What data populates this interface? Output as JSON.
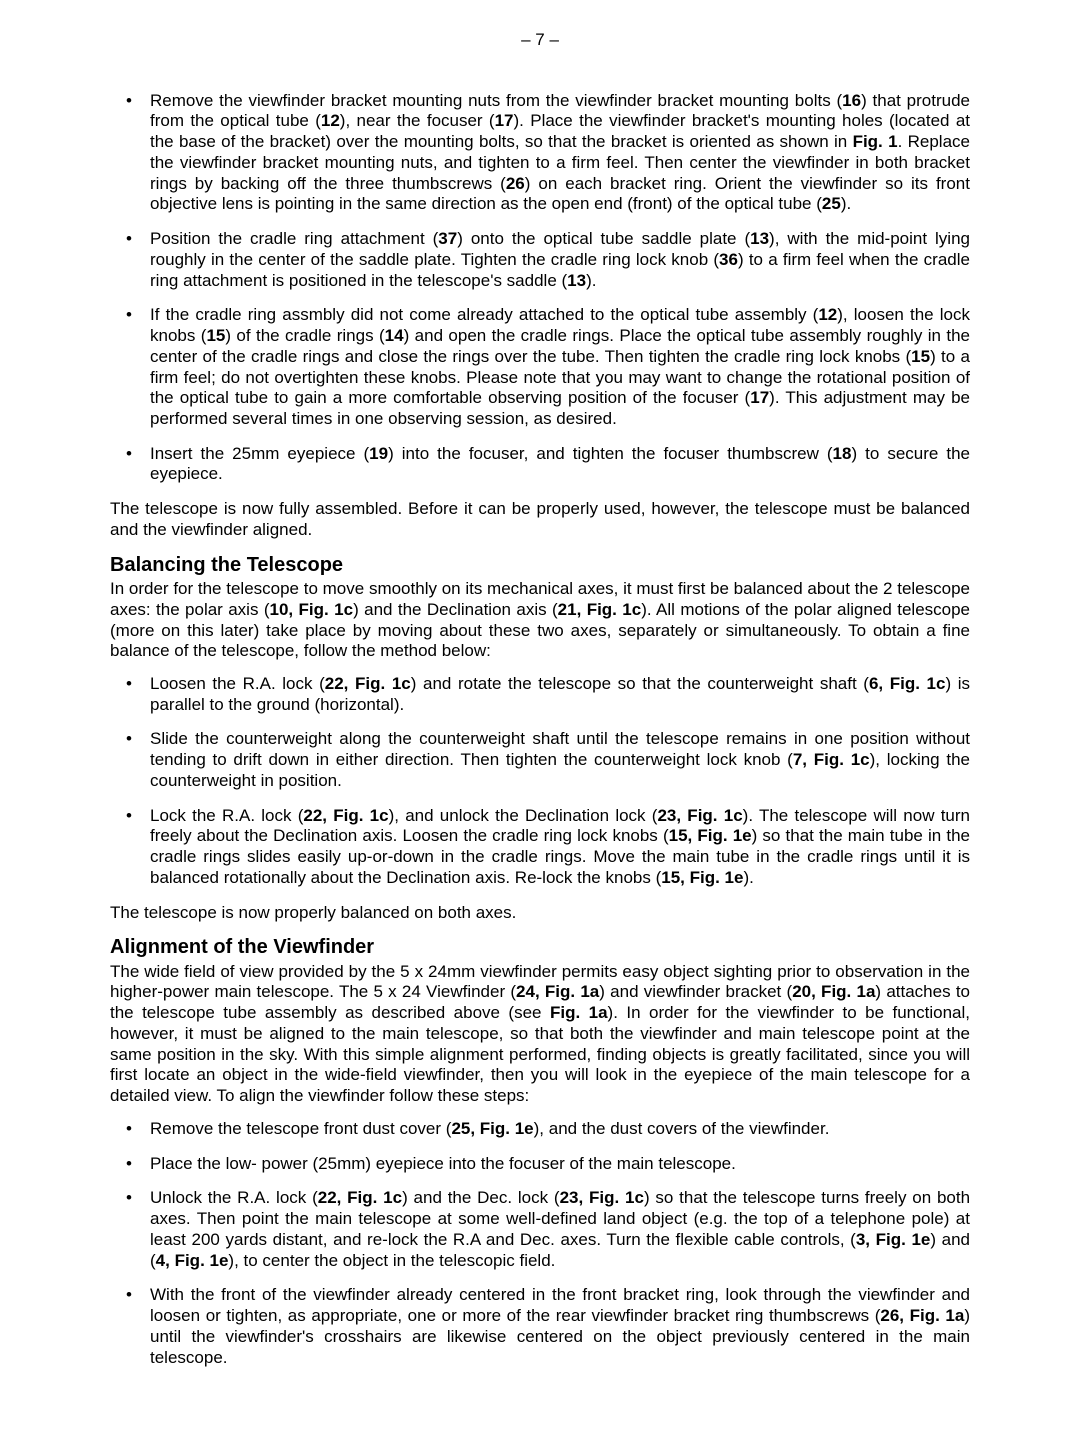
{
  "page_number": "– 7 –",
  "list1": [
    "Remove the viewfinder bracket mounting nuts from the viewfinder bracket mounting bolts (<b>16</b>) that protrude from the optical tube (<b>12</b>), near the focuser (<b>17</b>). Place the viewfinder bracket's mounting holes (located at the base of the bracket) over the mounting bolts, so that the bracket is oriented as shown in <b>Fig. 1</b>. Replace the viewfinder bracket mounting nuts, and tighten to a firm feel. Then center the viewfinder in both bracket rings by backing off the three thumbscrews (<b>26</b>) on each bracket ring. Orient the viewfinder so its front objective lens is pointing in the same direction as the open end (front) of the optical tube (<b>25</b>).",
    "Position the cradle ring attachment (<b>37</b>) onto the optical tube saddle plate (<b>13</b>), with the mid-point lying roughly in the center of the saddle plate. Tighten the cradle ring lock knob (<b>36</b>) to a firm feel when the cradle ring attachment is positioned in the telescope's saddle (<b>13</b>).",
    "If the cradle ring assmbly did not come already attached to the optical tube assembly (<b>12</b>), loosen the lock knobs (<b>15</b>) of the cradle rings (<b>14</b>) and open the cradle rings. Place the optical tube assembly roughly in the center of the cradle rings and close the rings over the tube. Then tighten the cradle ring lock knobs (<b>15</b>) to a firm feel; do not overtighten these knobs. Please note that you may want to change the rotational position of the optical tube to gain a more comfortable observing position of the focuser (<b>17</b>). This adjustment may be performed several times in one observing session, as desired.",
    "Insert the 25mm eyepiece (<b>19</b>) into the focuser, and tighten the focuser thumbscrew (<b>18</b>) to secure the eyepiece."
  ],
  "para1": "The telescope is now fully assembled. Before it can be properly used, however, the telescope must be balanced and the viewfinder aligned.",
  "heading1": "Balancing the Telescope",
  "para2": "In order for the telescope to move smoothly on its mechanical axes, it must first be balanced about the 2 telescope axes: the polar axis (<b>10, Fig. 1c</b>) and the Declination axis (<b>21, Fig. 1c</b>). All motions of the polar aligned telescope (more on this later) take place by moving about these two axes, separately or simultaneously. To obtain a fine balance of the telescope, follow the method below:",
  "list2": [
    "Loosen the R.A. lock (<b>22, Fig. 1c</b>) and rotate the telescope so that the counterweight shaft (<b>6, Fig. 1c</b>) is parallel to the ground (horizontal).",
    "Slide the counterweight along the counterweight shaft until the telescope remains in one position without tending to drift down in either direction. Then tighten the counterweight lock knob (<b>7, Fig. 1c</b>), locking the counterweight in position.",
    "Lock the R.A. lock (<b>22, Fig. 1c</b>), and unlock the Declination lock (<b>23, Fig. 1c</b>). The telescope will now turn freely about the Declination axis. Loosen the cradle ring lock knobs (<b>15, Fig. 1e</b>) so that the main tube in the cradle rings slides easily up-or-down in the cradle rings. Move the main tube in the cradle rings until it is balanced rotationally about the Declination axis. Re-lock the knobs (<b>15, Fig. 1e</b>)."
  ],
  "para3": "The telescope is now properly balanced on both axes.",
  "heading2": "Alignment of the Viewfinder",
  "para4": "The wide field of view provided by the 5 x 24mm viewfinder permits easy object sighting prior to observation in the higher-power main telescope. The 5 x 24 Viewfinder (<b>24, Fig. 1a</b>) and viewfinder bracket (<b>20, Fig. 1a</b>) attaches to the telescope tube assembly as described above (see <b>Fig. 1a</b>). In order for the viewfinder to be functional, however, it must be aligned to the main telescope, so that both the viewfinder and main telescope point at the same position in the sky. With this simple alignment performed, finding objects is greatly facilitated, since you will first locate an object in the wide-field viewfinder, then you will look in the eyepiece of the main telescope for a detailed view. To align the viewfinder follow these steps:",
  "list3": [
    "Remove the telescope front dust cover (<b>25, Fig. 1e</b>), and the dust covers of the viewfinder.",
    "Place the low- power (25mm) eyepiece into the focuser of the main telescope.",
    "Unlock the R.A. lock (<b>22, Fig. 1c</b>) and the Dec. lock (<b>23, Fig. 1c</b>) so that the telescope turns freely on both axes. Then point the main telescope at some well-defined land object (e.g. the top of a telephone pole) at least 200 yards distant, and re-lock the R.A and Dec. axes. Turn the flexible cable controls, (<b>3, Fig. 1e</b>) and (<b>4, Fig. 1e</b>), to center the object in the telescopic field.",
    "With the front of the viewfinder already centered in the front bracket ring, look through the viewfinder and loosen or tighten, as appropriate, one or more of the rear viewfinder bracket ring thumbscrews (<b>26, Fig. 1a</b>) until the viewfinder's crosshairs are likewise centered on the object previously centered in the main telescope."
  ]
}
